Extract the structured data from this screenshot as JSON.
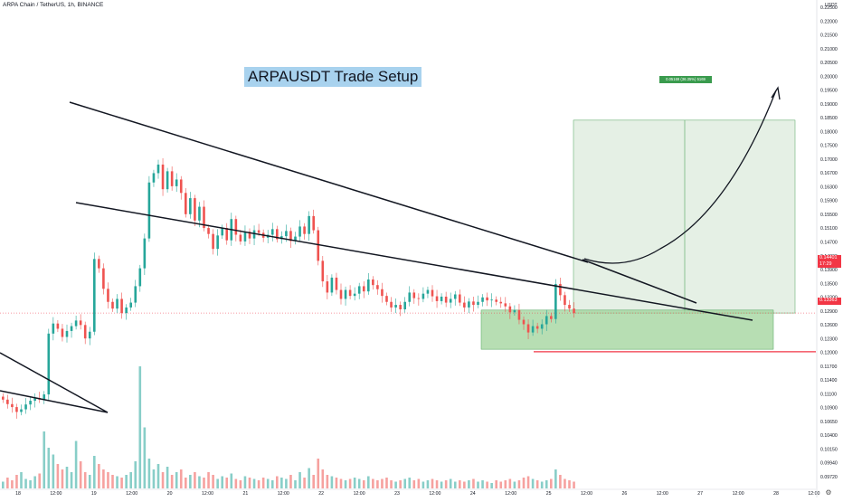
{
  "header": {
    "symbol_title": "ARPA Chain / TetherUS, 1h, BINANCE"
  },
  "annotation": {
    "setup_title": "ARPAUSDT Trade Setup",
    "target_label": "0.05169 (36.35%) 5169"
  },
  "price_axis": {
    "unit": "USDT",
    "current_price": "0.14401",
    "current_countdown": "17:29",
    "support_price": "0.13363",
    "ticks": [
      "0.22500",
      "0.22000",
      "0.21500",
      "0.21000",
      "0.20500",
      "0.20000",
      "0.19500",
      "0.19000",
      "0.18500",
      "0.18000",
      "0.17500",
      "0.17000",
      "0.16700",
      "0.16300",
      "0.15900",
      "0.15500",
      "0.15100",
      "0.14700",
      "0.14300",
      "0.13900",
      "0.13500",
      "0.13200",
      "0.12900",
      "0.12600",
      "0.12300",
      "0.12000",
      "0.11700",
      "0.11400",
      "0.11100",
      "0.10900",
      "0.10650",
      "0.10400",
      "0.10150",
      "0.09940",
      "0.09720"
    ]
  },
  "time_axis": {
    "ticks": [
      "18",
      "12:00",
      "19",
      "12:00",
      "20",
      "12:00",
      "21",
      "12:00",
      "22",
      "12:00",
      "23",
      "12:00",
      "24",
      "12:00",
      "25",
      "12:00",
      "26",
      "12:00",
      "27",
      "12:00",
      "28",
      "12:00"
    ]
  },
  "colors": {
    "up": "#26a69a",
    "down": "#ef5350",
    "target_zone": "#dcebdc",
    "entry_zone": "#9fd39a",
    "support_line": "#f23645",
    "price_line": "#f23645"
  },
  "icons": {
    "settings": "gear-icon"
  },
  "chart_data": {
    "type": "candlestick",
    "title": "ARPAUSDT Trade Setup",
    "symbol": "ARPA Chain / TetherUS, 1h, BINANCE",
    "y_unit": "USDT",
    "ylim": [
      0.097,
      0.225
    ],
    "current_price": 0.14401,
    "support_level": 0.13363,
    "target_zone": {
      "from": 0.14401,
      "to": 0.1957,
      "label": "0.05169 (36.35%) 5169"
    },
    "entry_zone": {
      "from": 0.1343,
      "to": 0.1448
    },
    "x_ticks": [
      "18",
      "12:00",
      "19",
      "12:00",
      "20",
      "12:00",
      "21",
      "12:00",
      "22",
      "12:00",
      "23",
      "12:00",
      "24",
      "12:00",
      "25",
      "12:00",
      "26",
      "12:00",
      "27",
      "12:00",
      "28",
      "12:00"
    ],
    "closes": [
      0.1208,
      0.1196,
      0.1188,
      0.1175,
      0.1182,
      0.1195,
      0.1205,
      0.1212,
      0.1208,
      0.1222,
      0.1385,
      0.1412,
      0.1398,
      0.1376,
      0.1392,
      0.1405,
      0.142,
      0.1408,
      0.1372,
      0.139,
      0.1585,
      0.156,
      0.1505,
      0.147,
      0.1452,
      0.1478,
      0.144,
      0.1455,
      0.1468,
      0.1512,
      0.156,
      0.164,
      0.179,
      0.1815,
      0.1838,
      0.1772,
      0.182,
      0.178,
      0.1798,
      0.1762,
      0.1705,
      0.1748,
      0.1688,
      0.1725,
      0.1668,
      0.1652,
      0.1612,
      0.1648,
      0.1668,
      0.1635,
      0.1692,
      0.165,
      0.1632,
      0.1658,
      0.164,
      0.1662,
      0.1655,
      0.1642,
      0.165,
      0.1665,
      0.1638,
      0.1646,
      0.166,
      0.1633,
      0.1645,
      0.1672,
      0.1652,
      0.17,
      0.1662,
      0.158,
      0.1525,
      0.1495,
      0.1535,
      0.1502,
      0.1478,
      0.1502,
      0.1486,
      0.1492,
      0.1512,
      0.1498,
      0.153,
      0.1515,
      0.1504,
      0.1486,
      0.147,
      0.1455,
      0.1462,
      0.145,
      0.147,
      0.1495,
      0.148,
      0.1478,
      0.1492,
      0.1502,
      0.1485,
      0.1472,
      0.1484,
      0.1468,
      0.1478,
      0.149,
      0.1468,
      0.1455,
      0.1471,
      0.1462,
      0.147,
      0.1482,
      0.1474,
      0.1476,
      0.147,
      0.1466,
      0.1458,
      0.1442,
      0.1448,
      0.1422,
      0.141,
      0.1388,
      0.1405,
      0.1398,
      0.141,
      0.1432,
      0.1424,
      0.1518,
      0.1488,
      0.1462,
      0.1452,
      0.144
    ],
    "volumes": [
      0.05,
      0.08,
      0.06,
      0.1,
      0.12,
      0.07,
      0.06,
      0.09,
      0.11,
      0.42,
      0.3,
      0.25,
      0.18,
      0.14,
      0.16,
      0.12,
      0.35,
      0.2,
      0.12,
      0.1,
      0.24,
      0.18,
      0.14,
      0.12,
      0.1,
      0.09,
      0.08,
      0.1,
      0.12,
      0.2,
      0.9,
      0.45,
      0.22,
      0.14,
      0.18,
      0.12,
      0.16,
      0.1,
      0.12,
      0.14,
      0.08,
      0.1,
      0.12,
      0.09,
      0.08,
      0.12,
      0.1,
      0.07,
      0.09,
      0.08,
      0.11,
      0.07,
      0.06,
      0.09,
      0.08,
      0.07,
      0.06,
      0.08,
      0.07,
      0.06,
      0.09,
      0.08,
      0.07,
      0.1,
      0.06,
      0.12,
      0.08,
      0.15,
      0.1,
      0.22,
      0.14,
      0.1,
      0.09,
      0.08,
      0.07,
      0.06,
      0.07,
      0.08,
      0.07,
      0.06,
      0.09,
      0.07,
      0.06,
      0.07,
      0.08,
      0.06,
      0.05,
      0.06,
      0.07,
      0.08,
      0.06,
      0.07,
      0.05,
      0.06,
      0.07,
      0.06,
      0.05,
      0.06,
      0.07,
      0.05,
      0.06,
      0.05,
      0.06,
      0.07,
      0.05,
      0.06,
      0.05,
      0.04,
      0.06,
      0.05,
      0.06,
      0.07,
      0.05,
      0.06,
      0.08,
      0.09,
      0.07,
      0.06,
      0.05,
      0.06,
      0.07,
      0.14,
      0.1,
      0.07,
      0.06,
      0.05
    ]
  }
}
